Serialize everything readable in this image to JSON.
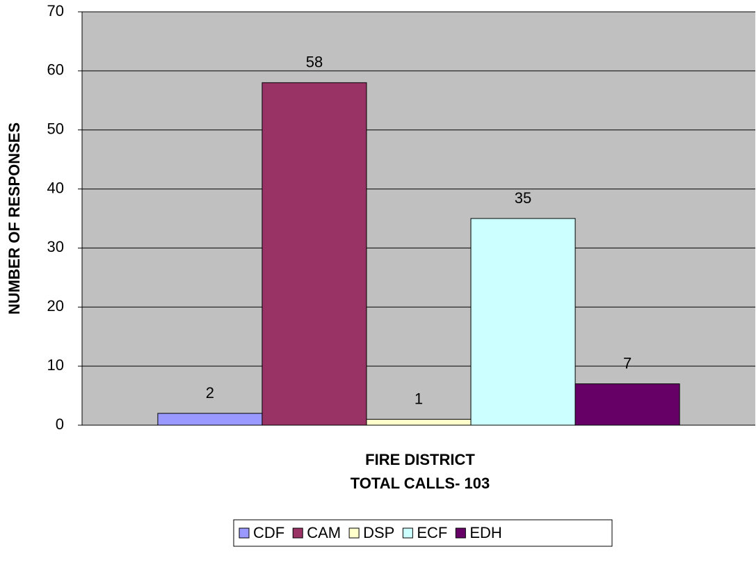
{
  "chart_data": {
    "type": "bar",
    "xlabel": [
      "FIRE DISTRICT",
      "TOTAL CALLS- 103"
    ],
    "ylabel": "NUMBER OF RESPONSES",
    "categories": [
      null
    ],
    "series": [
      {
        "name": "CDF",
        "color": "#9999ff",
        "values": [
          2
        ]
      },
      {
        "name": "CAM",
        "color": "#993366",
        "values": [
          58
        ]
      },
      {
        "name": "DSP",
        "color": "#ffffcc",
        "values": [
          1
        ]
      },
      {
        "name": "ECF",
        "color": "#ccffff",
        "values": [
          35
        ]
      },
      {
        "name": "EDH",
        "color": "#660066",
        "values": [
          7
        ]
      }
    ],
    "ylim": [
      0,
      70
    ],
    "yticks": [
      0,
      10,
      20,
      30,
      40,
      50,
      60,
      70
    ],
    "grid": true,
    "legend": "bottom",
    "plot_background": "#c0c0c0"
  }
}
